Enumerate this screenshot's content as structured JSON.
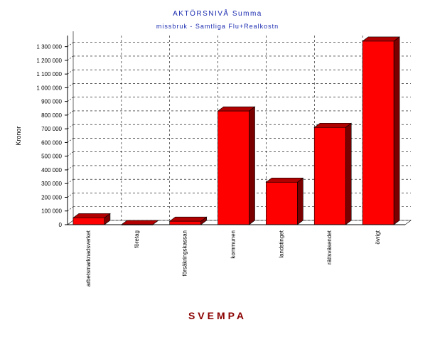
{
  "chart_data": {
    "type": "bar",
    "title": "AKTÖRSNIVÅ Summa",
    "subtitle": "missbruk - Samtliga Flu+Realkostn",
    "ylabel": "Kronor",
    "footer": "SVEMPA",
    "categories": [
      "arbetsmarknadsverket",
      "företag",
      "försäkringskassan",
      "kommunen",
      "landstinget",
      "rättsväsendet",
      "övrigt"
    ],
    "values": [
      50000,
      0,
      25000,
      830000,
      310000,
      710000,
      1340000
    ],
    "ylim": [
      0,
      1350000
    ],
    "yticks": [
      {
        "value": 0,
        "label": "0"
      },
      {
        "value": 100000,
        "label": "100 000"
      },
      {
        "value": 200000,
        "label": "200 000"
      },
      {
        "value": 300000,
        "label": "300 000"
      },
      {
        "value": 400000,
        "label": "400 000"
      },
      {
        "value": 500000,
        "label": "500 000"
      },
      {
        "value": 600000,
        "label": "600 000"
      },
      {
        "value": 700000,
        "label": "700 000"
      },
      {
        "value": 800000,
        "label": "800 000"
      },
      {
        "value": 900000,
        "label": "900 000"
      },
      {
        "value": 1000000,
        "label": "1 000 000"
      },
      {
        "value": 1100000,
        "label": "1 100 000"
      },
      {
        "value": 1200000,
        "label": "1 200 000"
      },
      {
        "value": 1300000,
        "label": "1 300 000"
      }
    ],
    "grid": true,
    "colors": {
      "bar_front": "#ff0000",
      "bar_side": "#7a0000",
      "bar_top": "#b00000"
    }
  }
}
